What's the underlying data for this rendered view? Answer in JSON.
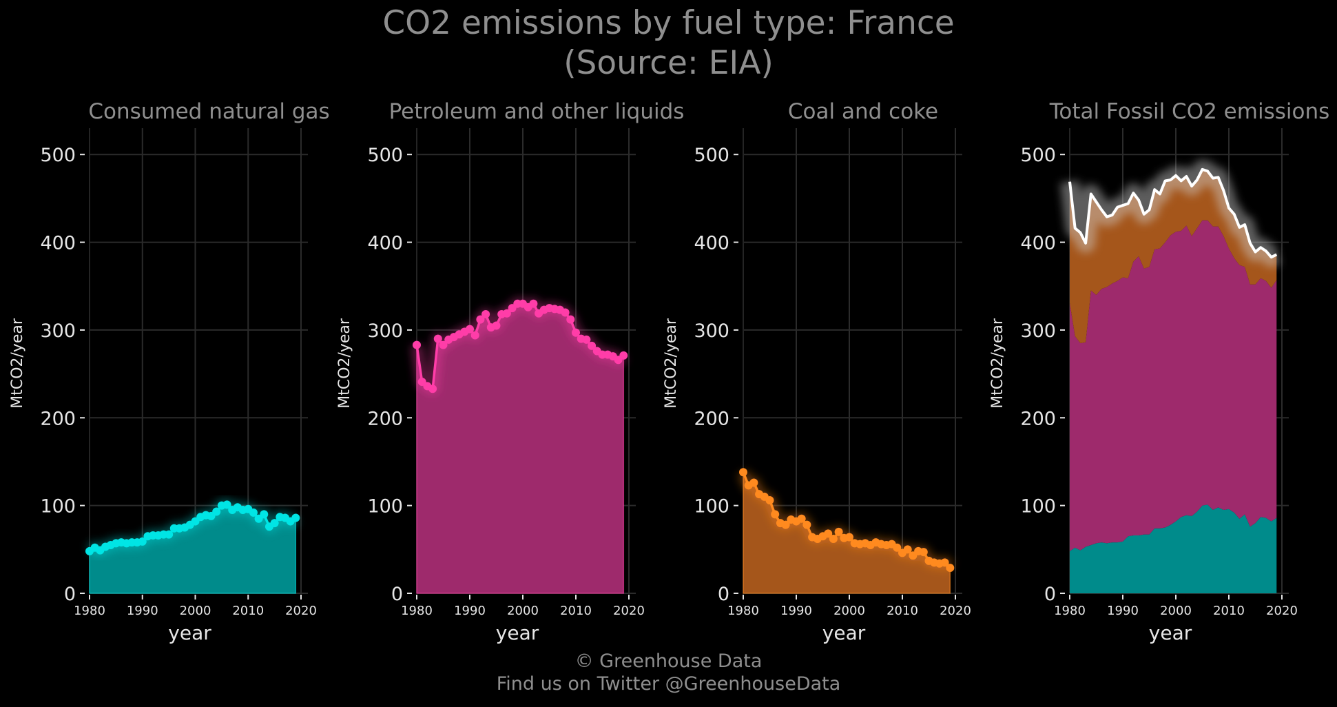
{
  "title": "CO2 emissions by fuel type: France",
  "subtitle": "(Source: EIA)",
  "footer": {
    "line1": "© Greenhouse Data",
    "line2": "Find us on Twitter @GreenhouseData"
  },
  "colors": {
    "background": "#000000",
    "gas": "#00e5e5",
    "gas_fill": "#008b8b",
    "petroleum": "#ff3da8",
    "petroleum_fill": "#9e2a6c",
    "coal": "#ff8a1f",
    "coal_fill": "#a5561b",
    "total": "#ffffff",
    "grid": "#2b2b2b",
    "text": "#e6e6e6",
    "muted": "#8f8f8f"
  },
  "chart_data": [
    {
      "type": "area",
      "title": "Consumed natural gas",
      "xlabel": "year",
      "ylabel": "MtCO2/year",
      "xlim": [
        1980,
        2020
      ],
      "ylim": [
        0,
        530
      ],
      "xticks": [
        1980,
        1990,
        2000,
        2010,
        2020
      ],
      "yticks": [
        0,
        100,
        200,
        300,
        400,
        500
      ],
      "grid": true,
      "x": [
        1980,
        1981,
        1982,
        1983,
        1984,
        1985,
        1986,
        1987,
        1988,
        1989,
        1990,
        1991,
        1992,
        1993,
        1994,
        1995,
        1996,
        1997,
        1998,
        1999,
        2000,
        2001,
        2002,
        2003,
        2004,
        2005,
        2006,
        2007,
        2008,
        2009,
        2010,
        2011,
        2012,
        2013,
        2014,
        2015,
        2016,
        2017,
        2018,
        2019
      ],
      "series": [
        {
          "key": "gas",
          "values": [
            48,
            52,
            49,
            53,
            55,
            57,
            58,
            57,
            58,
            58,
            59,
            65,
            66,
            66,
            67,
            67,
            74,
            74,
            75,
            78,
            82,
            87,
            89,
            88,
            93,
            100,
            101,
            95,
            98,
            95,
            96,
            92,
            85,
            90,
            76,
            80,
            87,
            86,
            82,
            86
          ]
        }
      ]
    },
    {
      "type": "area",
      "title": "Petroleum and other liquids",
      "xlabel": "year",
      "ylabel": "MtCO2/year",
      "xlim": [
        1980,
        2020
      ],
      "ylim": [
        0,
        530
      ],
      "xticks": [
        1980,
        1990,
        2000,
        2010,
        2020
      ],
      "yticks": [
        0,
        100,
        200,
        300,
        400,
        500
      ],
      "grid": true,
      "x": [
        1980,
        1981,
        1982,
        1983,
        1984,
        1985,
        1986,
        1987,
        1988,
        1989,
        1990,
        1991,
        1992,
        1993,
        1994,
        1995,
        1996,
        1997,
        1998,
        1999,
        2000,
        2001,
        2002,
        2003,
        2004,
        2005,
        2006,
        2007,
        2008,
        2009,
        2010,
        2011,
        2012,
        2013,
        2014,
        2015,
        2016,
        2017,
        2018,
        2019
      ],
      "series": [
        {
          "key": "petroleum",
          "values": [
            283,
            241,
            236,
            233,
            290,
            283,
            289,
            292,
            295,
            298,
            301,
            294,
            312,
            318,
            303,
            305,
            318,
            319,
            325,
            330,
            330,
            326,
            330,
            319,
            323,
            325,
            324,
            323,
            320,
            312,
            297,
            290,
            289,
            282,
            276,
            272,
            272,
            270,
            266,
            271
          ]
        }
      ]
    },
    {
      "type": "area",
      "title": "Coal and coke",
      "xlabel": "year",
      "ylabel": "MtCO2/year",
      "xlim": [
        1980,
        2020
      ],
      "ylim": [
        0,
        530
      ],
      "xticks": [
        1980,
        1990,
        2000,
        2010,
        2020
      ],
      "yticks": [
        0,
        100,
        200,
        300,
        400,
        500
      ],
      "grid": true,
      "x": [
        1980,
        1981,
        1982,
        1983,
        1984,
        1985,
        1986,
        1987,
        1988,
        1989,
        1990,
        1991,
        1992,
        1993,
        1994,
        1995,
        1996,
        1997,
        1998,
        1999,
        2000,
        2001,
        2002,
        2003,
        2004,
        2005,
        2006,
        2007,
        2008,
        2009,
        2010,
        2011,
        2012,
        2013,
        2014,
        2015,
        2016,
        2017,
        2018,
        2019
      ],
      "series": [
        {
          "key": "coal",
          "values": [
            138,
            123,
            126,
            113,
            110,
            106,
            90,
            80,
            78,
            84,
            82,
            85,
            78,
            64,
            62,
            65,
            68,
            62,
            70,
            63,
            64,
            57,
            56,
            57,
            55,
            58,
            56,
            55,
            56,
            52,
            46,
            50,
            43,
            48,
            47,
            37,
            35,
            34,
            35,
            29
          ]
        }
      ]
    },
    {
      "type": "area",
      "title": "Total Fossil CO2 emissions",
      "xlabel": "year",
      "ylabel": "MtCO2/year",
      "xlim": [
        1980,
        2020
      ],
      "ylim": [
        0,
        530
      ],
      "xticks": [
        1980,
        1990,
        2000,
        2010,
        2020
      ],
      "yticks": [
        0,
        100,
        200,
        300,
        400,
        500
      ],
      "grid": true,
      "stacked": true,
      "x": [
        1980,
        1981,
        1982,
        1983,
        1984,
        1985,
        1986,
        1987,
        1988,
        1989,
        1990,
        1991,
        1992,
        1993,
        1994,
        1995,
        1996,
        1997,
        1998,
        1999,
        2000,
        2001,
        2002,
        2003,
        2004,
        2005,
        2006,
        2007,
        2008,
        2009,
        2010,
        2011,
        2012,
        2013,
        2014,
        2015,
        2016,
        2017,
        2018,
        2019
      ],
      "series": [
        {
          "key": "gas",
          "values": [
            48,
            52,
            49,
            53,
            55,
            57,
            58,
            57,
            58,
            58,
            59,
            65,
            66,
            66,
            67,
            67,
            74,
            74,
            75,
            78,
            82,
            87,
            89,
            88,
            93,
            100,
            101,
            95,
            98,
            95,
            96,
            92,
            85,
            90,
            76,
            80,
            87,
            86,
            82,
            86
          ]
        },
        {
          "key": "petroleum",
          "values": [
            283,
            241,
            236,
            233,
            290,
            283,
            289,
            292,
            295,
            298,
            301,
            294,
            312,
            318,
            303,
            305,
            318,
            319,
            325,
            330,
            330,
            326,
            330,
            319,
            323,
            325,
            324,
            323,
            320,
            312,
            297,
            290,
            289,
            282,
            276,
            272,
            272,
            270,
            266,
            271
          ]
        },
        {
          "key": "coal",
          "values": [
            138,
            123,
            126,
            113,
            110,
            106,
            90,
            80,
            78,
            84,
            82,
            85,
            78,
            64,
            62,
            65,
            68,
            62,
            70,
            63,
            64,
            57,
            56,
            57,
            55,
            58,
            56,
            55,
            56,
            52,
            46,
            50,
            43,
            48,
            47,
            37,
            35,
            34,
            35,
            29
          ]
        }
      ],
      "total": {
        "key": "total",
        "values": [
          469,
          416,
          411,
          399,
          455,
          446,
          437,
          429,
          431,
          440,
          442,
          444,
          456,
          448,
          432,
          437,
          460,
          455,
          470,
          471,
          476,
          470,
          475,
          464,
          471,
          483,
          481,
          473,
          474,
          459,
          439,
          432,
          417,
          420,
          399,
          389,
          394,
          390,
          383,
          386
        ]
      }
    }
  ]
}
